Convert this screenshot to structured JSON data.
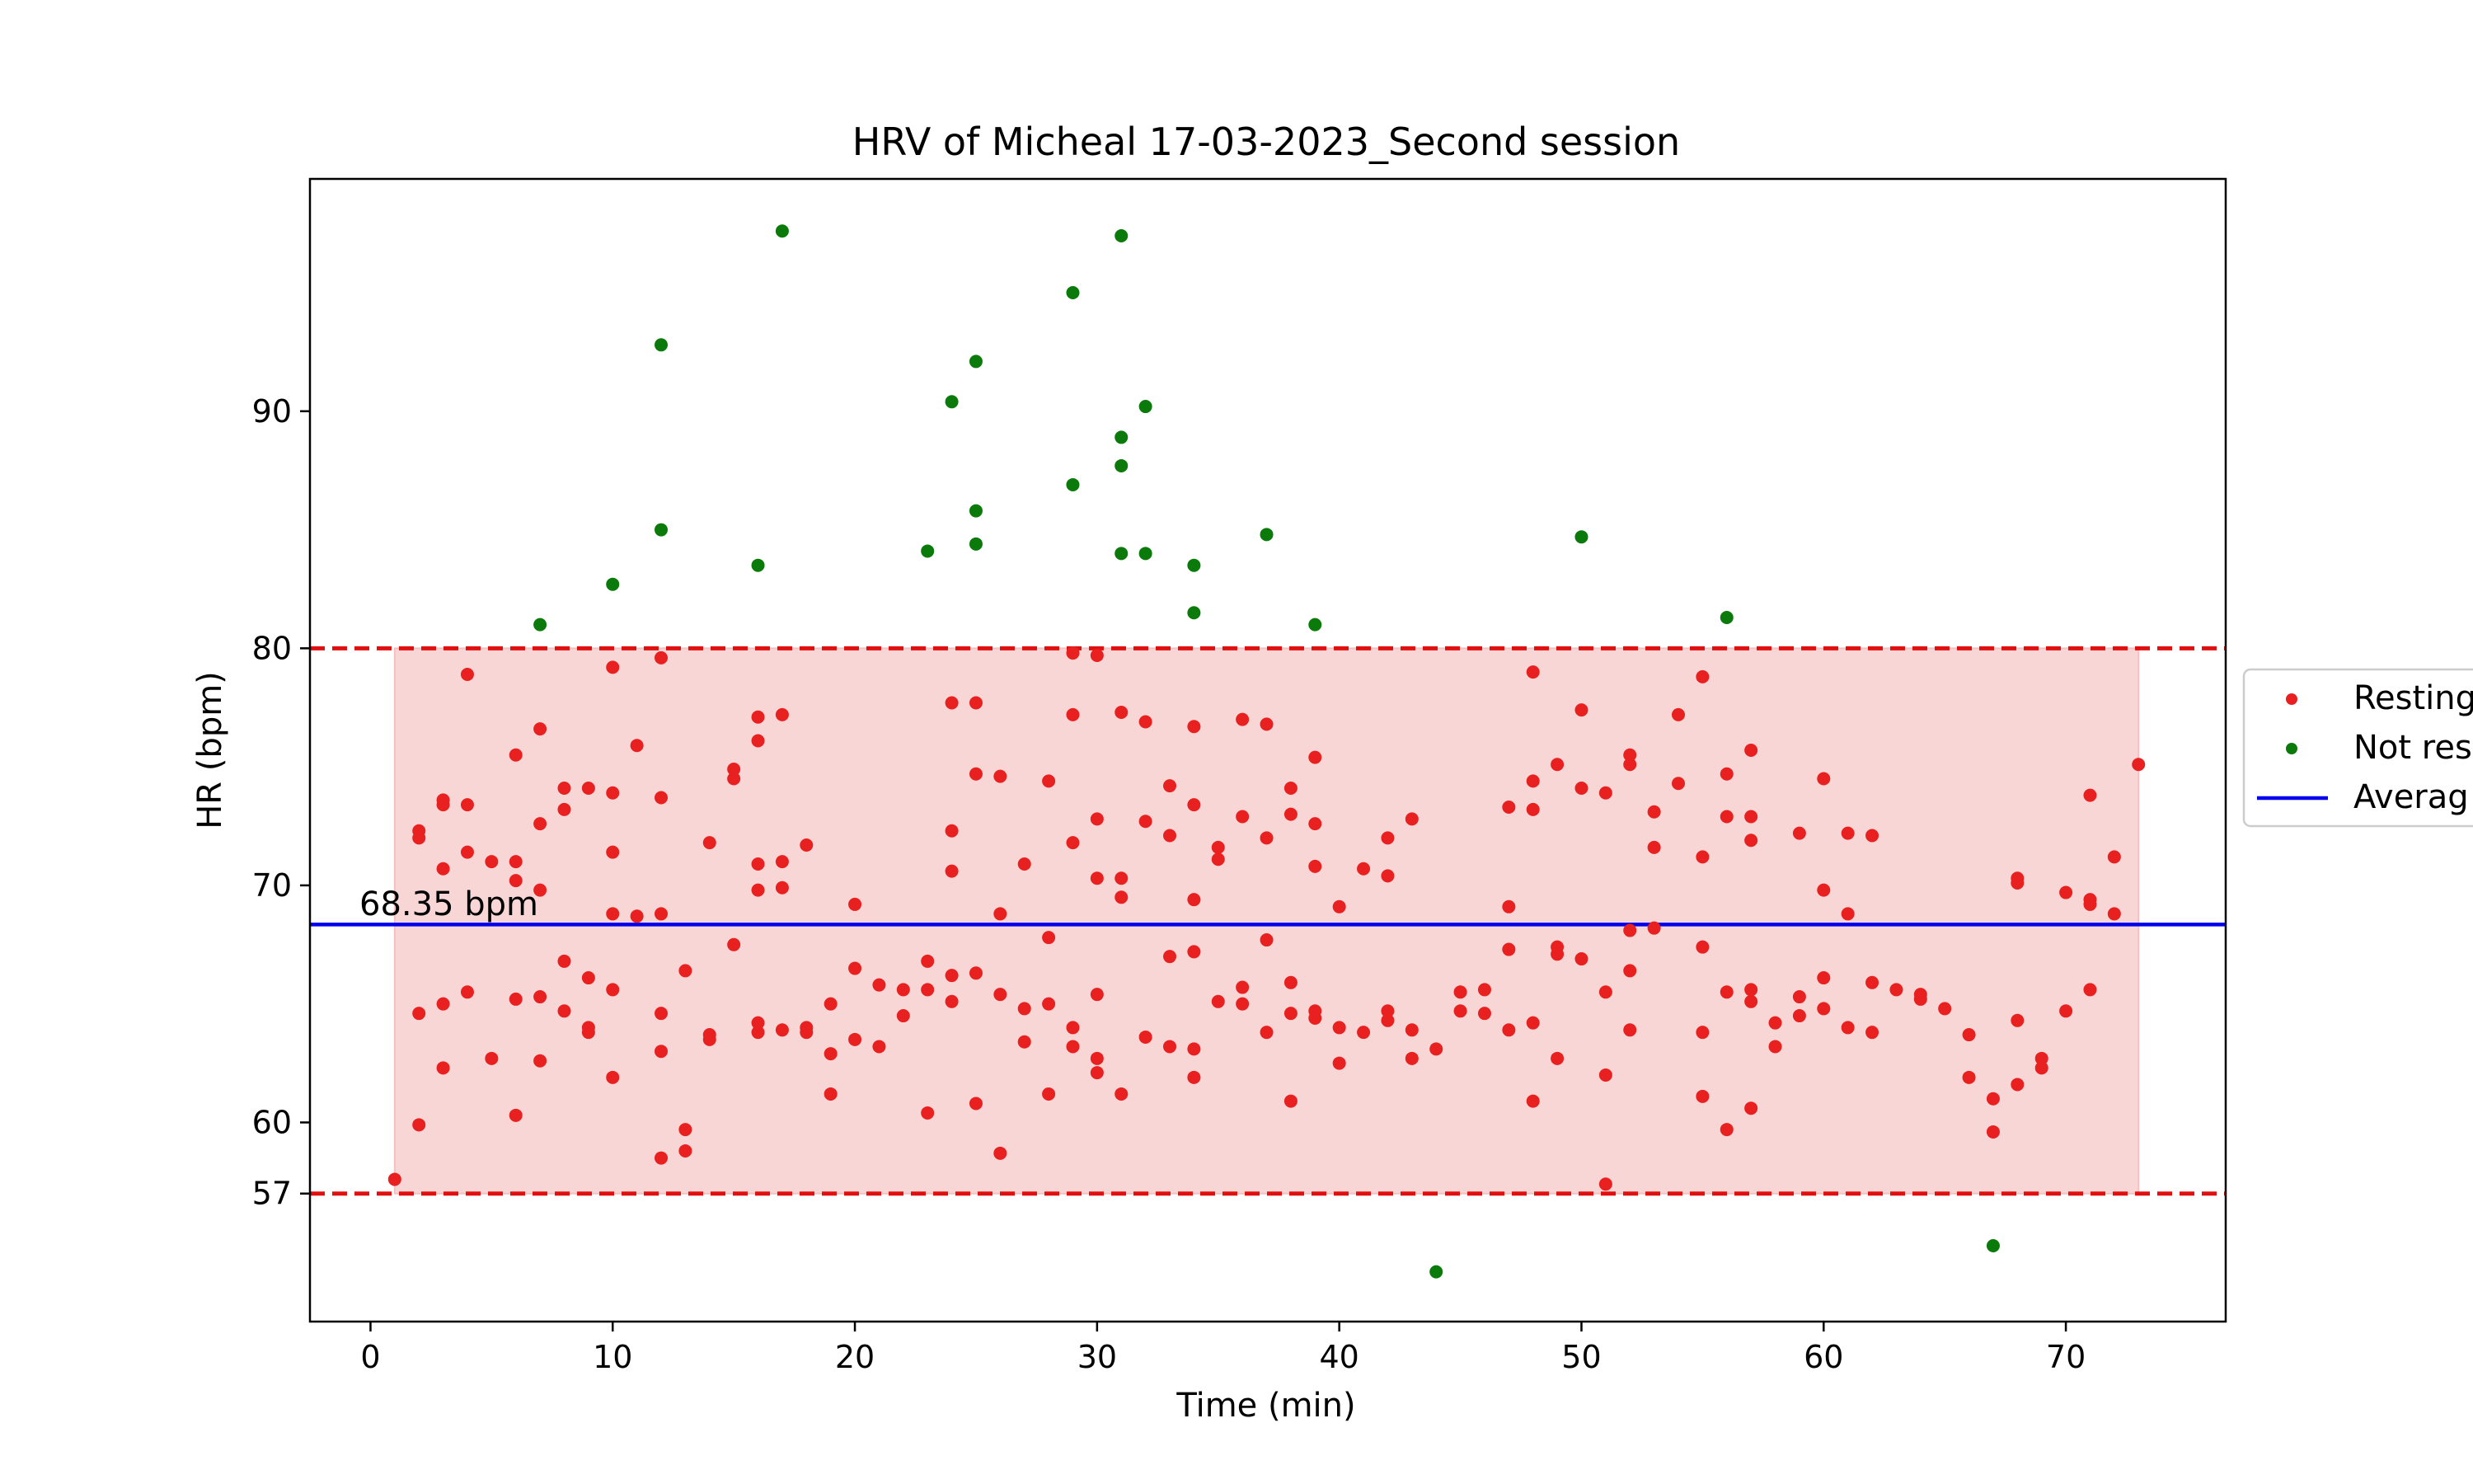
{
  "chart_data": {
    "type": "scatter",
    "title": "HRV of Micheal 17-03-2023_Second session",
    "xlabel": "Time (min)",
    "ylabel": "HR (bpm)",
    "xlim": [
      -2.5,
      76.6
    ],
    "ylim": [
      51.6,
      99.8
    ],
    "xticks": [
      0,
      10,
      20,
      30,
      40,
      50,
      60,
      70
    ],
    "yticks": [
      57,
      60,
      70,
      80,
      90
    ],
    "grid": false,
    "legend_position": "right (clipped)",
    "legend": [
      "Resting",
      "Not res",
      "Averag"
    ],
    "average_label": "68.35 bpm",
    "average": 68.35,
    "upper_limit": 80,
    "lower_limit": 57,
    "band_x": [
      1,
      73
    ],
    "colors": {
      "resting": "#e82020",
      "not_resting": "#0a7a0a",
      "average": "#0000ee",
      "limit": "#e01010",
      "band": "#f5c0c0"
    },
    "series": [
      {
        "name": "Resting",
        "points": [
          [
            1,
            57.6
          ],
          [
            2,
            72.3
          ],
          [
            2,
            72
          ],
          [
            2,
            64.6
          ],
          [
            2,
            59.9
          ],
          [
            3,
            73.6
          ],
          [
            3,
            73.4
          ],
          [
            3,
            70.7
          ],
          [
            3,
            65
          ],
          [
            3,
            62.3
          ],
          [
            4,
            78.9
          ],
          [
            4,
            73.4
          ],
          [
            4,
            71.4
          ],
          [
            4,
            65.5
          ],
          [
            5,
            71
          ],
          [
            5,
            62.7
          ],
          [
            6,
            75.5
          ],
          [
            6,
            71
          ],
          [
            6,
            70.2
          ],
          [
            6,
            65.2
          ],
          [
            6,
            60.3
          ],
          [
            7,
            76.6
          ],
          [
            7,
            72.6
          ],
          [
            7,
            69.8
          ],
          [
            7,
            65.3
          ],
          [
            7,
            62.6
          ],
          [
            8,
            74.1
          ],
          [
            8,
            73.2
          ],
          [
            8,
            66.8
          ],
          [
            8,
            64.7
          ],
          [
            9,
            74.1
          ],
          [
            9,
            66.1
          ],
          [
            9,
            64
          ],
          [
            9,
            63.8
          ],
          [
            10,
            79.2
          ],
          [
            10,
            73.9
          ],
          [
            10,
            71.4
          ],
          [
            10,
            68.8
          ],
          [
            10,
            65.6
          ],
          [
            10,
            61.9
          ],
          [
            11,
            75.9
          ],
          [
            11,
            68.7
          ],
          [
            12,
            79.6
          ],
          [
            12,
            73.7
          ],
          [
            12,
            68.8
          ],
          [
            12,
            64.6
          ],
          [
            12,
            63
          ],
          [
            12,
            58.5
          ],
          [
            13,
            66.4
          ],
          [
            13,
            59.7
          ],
          [
            13,
            58.8
          ],
          [
            14,
            71.8
          ],
          [
            14,
            63.7
          ],
          [
            14,
            63.5
          ],
          [
            15,
            74.9
          ],
          [
            15,
            74.5
          ],
          [
            15,
            67.5
          ],
          [
            16,
            77.1
          ],
          [
            16,
            76.1
          ],
          [
            16,
            70.9
          ],
          [
            16,
            69.8
          ],
          [
            16,
            64.2
          ],
          [
            16,
            63.8
          ],
          [
            17,
            77.2
          ],
          [
            17,
            71
          ],
          [
            17,
            69.9
          ],
          [
            17,
            63.9
          ],
          [
            18,
            71.7
          ],
          [
            18,
            64
          ],
          [
            18,
            63.8
          ],
          [
            19,
            65
          ],
          [
            19,
            62.9
          ],
          [
            19,
            61.2
          ],
          [
            20,
            69.2
          ],
          [
            20,
            66.5
          ],
          [
            20,
            63.5
          ],
          [
            21,
            65.8
          ],
          [
            21,
            63.2
          ],
          [
            22,
            65.6
          ],
          [
            22,
            64.5
          ],
          [
            23,
            66.8
          ],
          [
            23,
            65.6
          ],
          [
            23,
            60.4
          ],
          [
            24,
            77.7
          ],
          [
            24,
            72.3
          ],
          [
            24,
            70.6
          ],
          [
            24,
            66.2
          ],
          [
            24,
            65.1
          ],
          [
            25,
            77.7
          ],
          [
            25,
            74.7
          ],
          [
            25,
            66.3
          ],
          [
            25,
            60.8
          ],
          [
            26,
            74.6
          ],
          [
            26,
            68.8
          ],
          [
            26,
            65.4
          ],
          [
            26,
            58.7
          ],
          [
            27,
            70.9
          ],
          [
            27,
            64.8
          ],
          [
            27,
            63.4
          ],
          [
            28,
            74.4
          ],
          [
            28,
            67.8
          ],
          [
            28,
            65
          ],
          [
            28,
            61.2
          ],
          [
            29,
            79.8
          ],
          [
            29,
            77.2
          ],
          [
            29,
            71.8
          ],
          [
            29,
            64
          ],
          [
            29,
            63.2
          ],
          [
            30,
            79.7
          ],
          [
            30,
            72.8
          ],
          [
            30,
            70.3
          ],
          [
            30,
            65.4
          ],
          [
            30,
            62.7
          ],
          [
            30,
            62.1
          ],
          [
            31,
            77.3
          ],
          [
            31,
            70.3
          ],
          [
            31,
            69.5
          ],
          [
            31,
            61.2
          ],
          [
            32,
            76.9
          ],
          [
            32,
            72.7
          ],
          [
            32,
            63.6
          ],
          [
            33,
            74.2
          ],
          [
            33,
            72.1
          ],
          [
            33,
            67
          ],
          [
            33,
            63.2
          ],
          [
            34,
            76.7
          ],
          [
            34,
            73.4
          ],
          [
            34,
            69.4
          ],
          [
            34,
            67.2
          ],
          [
            34,
            63.1
          ],
          [
            34,
            61.9
          ],
          [
            35,
            71.6
          ],
          [
            35,
            71.1
          ],
          [
            35,
            65.1
          ],
          [
            36,
            77
          ],
          [
            36,
            72.9
          ],
          [
            36,
            65.7
          ],
          [
            36,
            65
          ],
          [
            37,
            76.8
          ],
          [
            37,
            72
          ],
          [
            37,
            67.7
          ],
          [
            37,
            63.8
          ],
          [
            38,
            74.1
          ],
          [
            38,
            73
          ],
          [
            38,
            65.9
          ],
          [
            38,
            64.6
          ],
          [
            38,
            60.9
          ],
          [
            39,
            75.4
          ],
          [
            39,
            72.6
          ],
          [
            39,
            70.8
          ],
          [
            39,
            64.7
          ],
          [
            39,
            64.4
          ],
          [
            40,
            69.1
          ],
          [
            40,
            64
          ],
          [
            40,
            62.5
          ],
          [
            41,
            70.7
          ],
          [
            41,
            63.8
          ],
          [
            42,
            72
          ],
          [
            42,
            70.4
          ],
          [
            42,
            64.7
          ],
          [
            42,
            64.3
          ],
          [
            43,
            72.8
          ],
          [
            43,
            63.9
          ],
          [
            43,
            62.7
          ],
          [
            44,
            63.1
          ],
          [
            45,
            65.5
          ],
          [
            45,
            64.7
          ],
          [
            46,
            65.6
          ],
          [
            46,
            64.6
          ],
          [
            47,
            73.3
          ],
          [
            47,
            69.1
          ],
          [
            47,
            67.3
          ],
          [
            47,
            63.9
          ],
          [
            48,
            79
          ],
          [
            48,
            74.4
          ],
          [
            48,
            73.2
          ],
          [
            48,
            64.2
          ],
          [
            48,
            60.9
          ],
          [
            49,
            75.1
          ],
          [
            49,
            67.4
          ],
          [
            49,
            67.1
          ],
          [
            49,
            62.7
          ],
          [
            50,
            77.4
          ],
          [
            50,
            74.1
          ],
          [
            50,
            66.9
          ],
          [
            51,
            73.9
          ],
          [
            51,
            65.5
          ],
          [
            51,
            62
          ],
          [
            51,
            57.4
          ],
          [
            52,
            75.5
          ],
          [
            52,
            75.1
          ],
          [
            52,
            68.1
          ],
          [
            52,
            66.4
          ],
          [
            52,
            63.9
          ],
          [
            53,
            73.1
          ],
          [
            53,
            71.6
          ],
          [
            53,
            68.2
          ],
          [
            54,
            77.2
          ],
          [
            54,
            74.3
          ],
          [
            55,
            78.8
          ],
          [
            55,
            71.2
          ],
          [
            55,
            67.4
          ],
          [
            55,
            63.8
          ],
          [
            55,
            61.1
          ],
          [
            56,
            74.7
          ],
          [
            56,
            72.9
          ],
          [
            56,
            65.5
          ],
          [
            56,
            59.7
          ],
          [
            57,
            75.7
          ],
          [
            57,
            72.9
          ],
          [
            57,
            71.9
          ],
          [
            57,
            65.6
          ],
          [
            57,
            65.1
          ],
          [
            57,
            60.6
          ],
          [
            58,
            64.2
          ],
          [
            58,
            63.2
          ],
          [
            59,
            72.2
          ],
          [
            59,
            65.3
          ],
          [
            59,
            64.5
          ],
          [
            60,
            74.5
          ],
          [
            60,
            69.8
          ],
          [
            60,
            66.1
          ],
          [
            60,
            64.8
          ],
          [
            61,
            72.2
          ],
          [
            61,
            68.8
          ],
          [
            61,
            64
          ],
          [
            62,
            72.1
          ],
          [
            62,
            65.9
          ],
          [
            62,
            63.8
          ],
          [
            63,
            65.6
          ],
          [
            64,
            65.4
          ],
          [
            64,
            65.2
          ],
          [
            65,
            64.8
          ],
          [
            66,
            63.7
          ],
          [
            66,
            61.9
          ],
          [
            67,
            61
          ],
          [
            67,
            59.6
          ],
          [
            68,
            70.3
          ],
          [
            68,
            70.1
          ],
          [
            68,
            64.3
          ],
          [
            68,
            61.6
          ],
          [
            69,
            62.7
          ],
          [
            69,
            62.3
          ],
          [
            70,
            69.7
          ],
          [
            70,
            64.7
          ],
          [
            71,
            73.8
          ],
          [
            71,
            69.4
          ],
          [
            71,
            69.2
          ],
          [
            71,
            65.6
          ],
          [
            72,
            71.2
          ],
          [
            72,
            68.8
          ],
          [
            73,
            75.1
          ]
        ]
      },
      {
        "name": "Not res",
        "points": [
          [
            7,
            81
          ],
          [
            10,
            82.7
          ],
          [
            12,
            92.8
          ],
          [
            12,
            85
          ],
          [
            16,
            83.5
          ],
          [
            17,
            97.6
          ],
          [
            23,
            84.1
          ],
          [
            24,
            90.4
          ],
          [
            25,
            92.1
          ],
          [
            25,
            85.8
          ],
          [
            25,
            84.4
          ],
          [
            29,
            95
          ],
          [
            29,
            86.9
          ],
          [
            31,
            97.4
          ],
          [
            31,
            88.9
          ],
          [
            31,
            87.7
          ],
          [
            31,
            84
          ],
          [
            32,
            90.2
          ],
          [
            32,
            84
          ],
          [
            34,
            83.5
          ],
          [
            34,
            81.5
          ],
          [
            37,
            84.8
          ],
          [
            39,
            81
          ],
          [
            44,
            53.7
          ],
          [
            50,
            84.7
          ],
          [
            56,
            81.3
          ],
          [
            67,
            54.8
          ]
        ]
      },
      {
        "name": "Averag",
        "y": 68.35
      }
    ]
  }
}
